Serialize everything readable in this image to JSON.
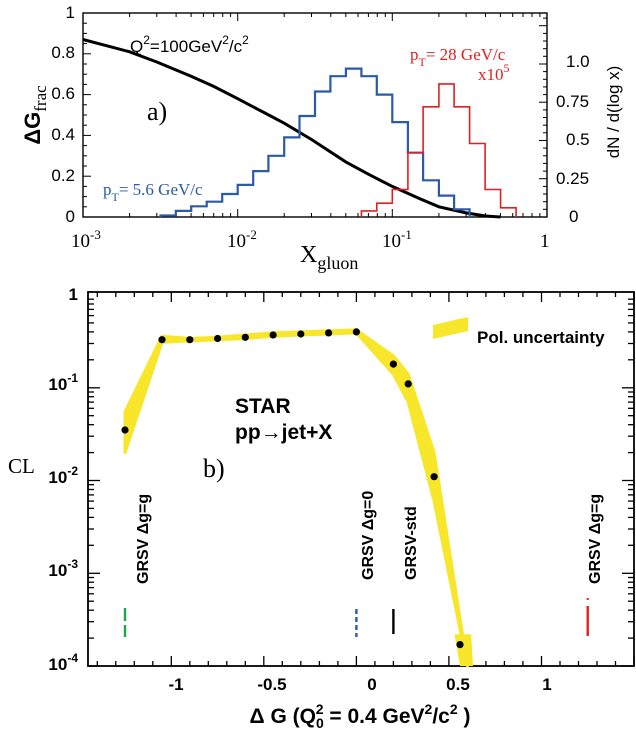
{
  "chart_data": [
    {
      "type": "line",
      "panel_label": "a)",
      "xlabel": "X",
      "xlabel_sub": "gluon",
      "xscale": "log",
      "xlim": [
        0.001,
        1
      ],
      "x_ticks": [
        {
          "value": 0.001,
          "base": "10",
          "exp": "-3"
        },
        {
          "value": 0.01,
          "base": "10",
          "exp": "-2"
        },
        {
          "value": 0.1,
          "base": "10",
          "exp": "-1"
        },
        {
          "value": 1,
          "text": "1"
        }
      ],
      "ylabel_left_main": "ΔG",
      "ylabel_left_sub": "frac",
      "ylim_left": [
        0,
        1
      ],
      "y_ticks_left": [
        "0",
        "0.2",
        "0.4",
        "0.6",
        "0.8",
        "1"
      ],
      "ylabel_right": "dN / d(log x)",
      "ylim_right": [
        0,
        1.333
      ],
      "y_ticks_right": [
        {
          "value": 0,
          "text": "0"
        },
        {
          "value": 0.25,
          "text": "0.25"
        },
        {
          "value": 0.5,
          "text": "0.5"
        },
        {
          "value": 0.75,
          "text": "0.75"
        },
        {
          "value": 1.0,
          "text": "1.0"
        }
      ],
      "grid": false,
      "annotations": {
        "q2": {
          "pre": "Q",
          "sup1": "2",
          "mid": "=100GeV",
          "sup2": "2",
          "mid2": "/c",
          "sup3": "2"
        },
        "pt_low": {
          "pre": "p",
          "sub": "T",
          "post": "= 5.6 GeV/c"
        },
        "pt_high": {
          "pre": "p",
          "sub": "T",
          "post": "= 28 GeV/c"
        },
        "scale": {
          "pre": "x10",
          "sup": "5"
        }
      },
      "series": [
        {
          "color": "#000000",
          "style": "curve",
          "x": [
            0.001,
            0.002,
            0.003,
            0.005,
            0.007,
            0.01,
            0.015,
            0.02,
            0.03,
            0.05,
            0.07,
            0.1,
            0.15,
            0.2,
            0.3,
            0.4,
            0.5
          ],
          "y": [
            0.87,
            0.81,
            0.76,
            0.69,
            0.64,
            0.58,
            0.51,
            0.46,
            0.38,
            0.27,
            0.21,
            0.15,
            0.09,
            0.05,
            0.02,
            0.005,
            0.0
          ]
        },
        {
          "name": "p_T = 5.6 GeV/c",
          "color": "#2a5aa8",
          "style": "step",
          "edges": [
            0.00317,
            0.00398,
            0.00501,
            0.00631,
            0.00794,
            0.01,
            0.0126,
            0.0158,
            0.02,
            0.0251,
            0.0316,
            0.0398,
            0.0501,
            0.0631,
            0.0794,
            0.1,
            0.126,
            0.158,
            0.2,
            0.251,
            0.316
          ],
          "values": [
            0.01,
            0.04,
            0.07,
            0.1,
            0.15,
            0.21,
            0.3,
            0.4,
            0.52,
            0.66,
            0.82,
            0.92,
            0.97,
            0.92,
            0.8,
            0.62,
            0.42,
            0.24,
            0.14,
            0.05
          ]
        },
        {
          "name": "p_T = 28 GeV/c",
          "color": "#e02020",
          "style": "step",
          "edges": [
            0.0631,
            0.0794,
            0.1,
            0.126,
            0.158,
            0.2,
            0.251,
            0.316,
            0.398,
            0.501,
            0.631
          ],
          "values": [
            0.04,
            0.09,
            0.18,
            0.42,
            0.72,
            0.87,
            0.72,
            0.48,
            0.18,
            0.06
          ]
        }
      ]
    },
    {
      "type": "line",
      "panel_label": "b)",
      "xlabel": {
        "pre": "Δ G (Q",
        "sub": "0",
        "sup": "2",
        "mid": " = 0.4 GeV",
        "sup2": "2",
        "mid2": "/c",
        "sup3": "2",
        "post": " )"
      },
      "ylabel": "CL",
      "yscale": "log",
      "xlim": [
        -1.45,
        1.5
      ],
      "ylim": [
        0.0001,
        1
      ],
      "x_ticks": [
        "-1",
        "-0.5",
        "0",
        "0.5",
        "1"
      ],
      "y_ticks": [
        {
          "value": 1,
          "text": "1"
        },
        {
          "value": 0.1,
          "base": "10",
          "exp": "-1"
        },
        {
          "value": 0.01,
          "base": "10",
          "exp": "-2"
        },
        {
          "value": 0.001,
          "base": "10",
          "exp": "-3"
        },
        {
          "value": 0.0001,
          "base": "10",
          "exp": "-4"
        }
      ],
      "legend": {
        "label": "Pol. uncertainty",
        "color": "#f7e62a",
        "position": "top-right"
      },
      "title_lines": [
        "STAR",
        "pp→jet+X"
      ],
      "points": {
        "x": [
          -1.25,
          -1.05,
          -0.9,
          -0.75,
          -0.6,
          -0.45,
          -0.3,
          -0.15,
          0.0,
          0.2,
          0.28,
          0.42,
          0.56
        ],
        "y": [
          0.035,
          0.33,
          0.33,
          0.34,
          0.35,
          0.37,
          0.38,
          0.39,
          0.4,
          0.18,
          0.11,
          0.011,
          0.00017
        ]
      },
      "band": {
        "x": [
          -1.25,
          -1.05,
          -0.9,
          -0.75,
          -0.6,
          -0.45,
          -0.3,
          -0.15,
          0.0,
          0.2,
          0.28,
          0.42,
          0.6
        ],
        "lower": [
          0.02,
          0.31,
          0.32,
          0.33,
          0.34,
          0.36,
          0.37,
          0.38,
          0.39,
          0.14,
          0.07,
          0.006,
          0.0001
        ],
        "upper": [
          0.055,
          0.36,
          0.34,
          0.35,
          0.37,
          0.39,
          0.4,
          0.41,
          0.42,
          0.22,
          0.14,
          0.02,
          0.0001
        ]
      },
      "markers": [
        {
          "label": "GRSV Δg=g",
          "x": -1.25,
          "color": "#1fa64a",
          "dash": "dashed"
        },
        {
          "label": "GRSV Δg=0",
          "x": 0.0,
          "color": "#2a5aa8",
          "dash": "dotted"
        },
        {
          "label": "GRSV-std",
          "x": 0.2,
          "color": "#000000",
          "dash": "solid"
        },
        {
          "label": "GRSV Δg=g",
          "x": 1.25,
          "color": "#e02020",
          "dash": "solid"
        }
      ]
    }
  ]
}
